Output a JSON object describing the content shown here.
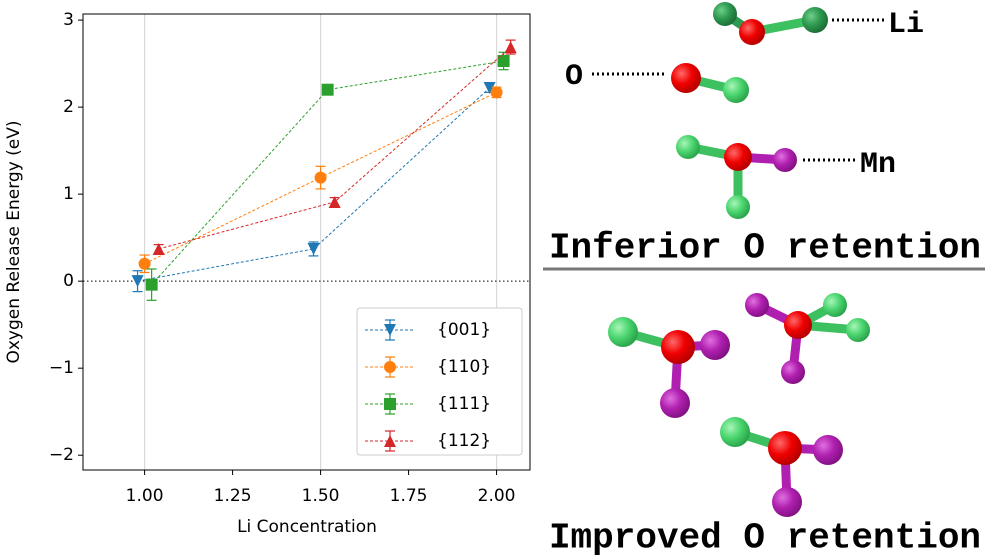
{
  "chart_data": {
    "type": "errorbar-line",
    "xlabel": "Li Concentration",
    "ylabel": "Oxygen Release Energy (eV)",
    "xlim": [
      0.825,
      2.095
    ],
    "ylim": [
      -2.17,
      3.07
    ],
    "xticks": [
      {
        "value": 1.0,
        "label": "1.00"
      },
      {
        "value": 1.25,
        "label": "1.25"
      },
      {
        "value": 1.5,
        "label": "1.50"
      },
      {
        "value": 1.75,
        "label": "1.75"
      },
      {
        "value": 2.0,
        "label": "2.00"
      }
    ],
    "yticks": [
      {
        "value": -2,
        "label": "−2"
      },
      {
        "value": -1,
        "label": "−1"
      },
      0,
      1,
      2,
      3
    ],
    "x_gridlines": [
      1.0,
      1.5,
      2.0
    ],
    "hline": 0,
    "legend": "lower right",
    "series": [
      {
        "name": "{001}",
        "color": "#1f77b4",
        "marker": "v",
        "x": [
          0.98,
          1.48,
          1.98
        ],
        "values": [
          0.0,
          0.37,
          2.22
        ],
        "errors": [
          0.12,
          0.08,
          0.05
        ]
      },
      {
        "name": "{110}",
        "color": "#ff7f0e",
        "marker": "o",
        "x": [
          1.0,
          1.5,
          2.0
        ],
        "values": [
          0.2,
          1.19,
          2.17
        ],
        "errors": [
          0.1,
          0.13,
          0.06
        ]
      },
      {
        "name": "{111}",
        "color": "#2ca02c",
        "marker": "s",
        "x": [
          1.02,
          1.52,
          2.02
        ],
        "values": [
          -0.04,
          2.2,
          2.53
        ],
        "errors": [
          0.18,
          0.03,
          0.1
        ]
      },
      {
        "name": "{112}",
        "color": "#d62728",
        "marker": "^",
        "x": [
          1.04,
          1.54,
          2.04
        ],
        "values": [
          0.37,
          0.91,
          2.69
        ],
        "errors": [
          0.05,
          0.05,
          0.08
        ]
      }
    ]
  },
  "diagram": {
    "li_label": "Li",
    "o_label": "O",
    "mn_label": "Mn",
    "top_caption": "Inferior O retention",
    "bottom_caption": "Improved O retention"
  }
}
